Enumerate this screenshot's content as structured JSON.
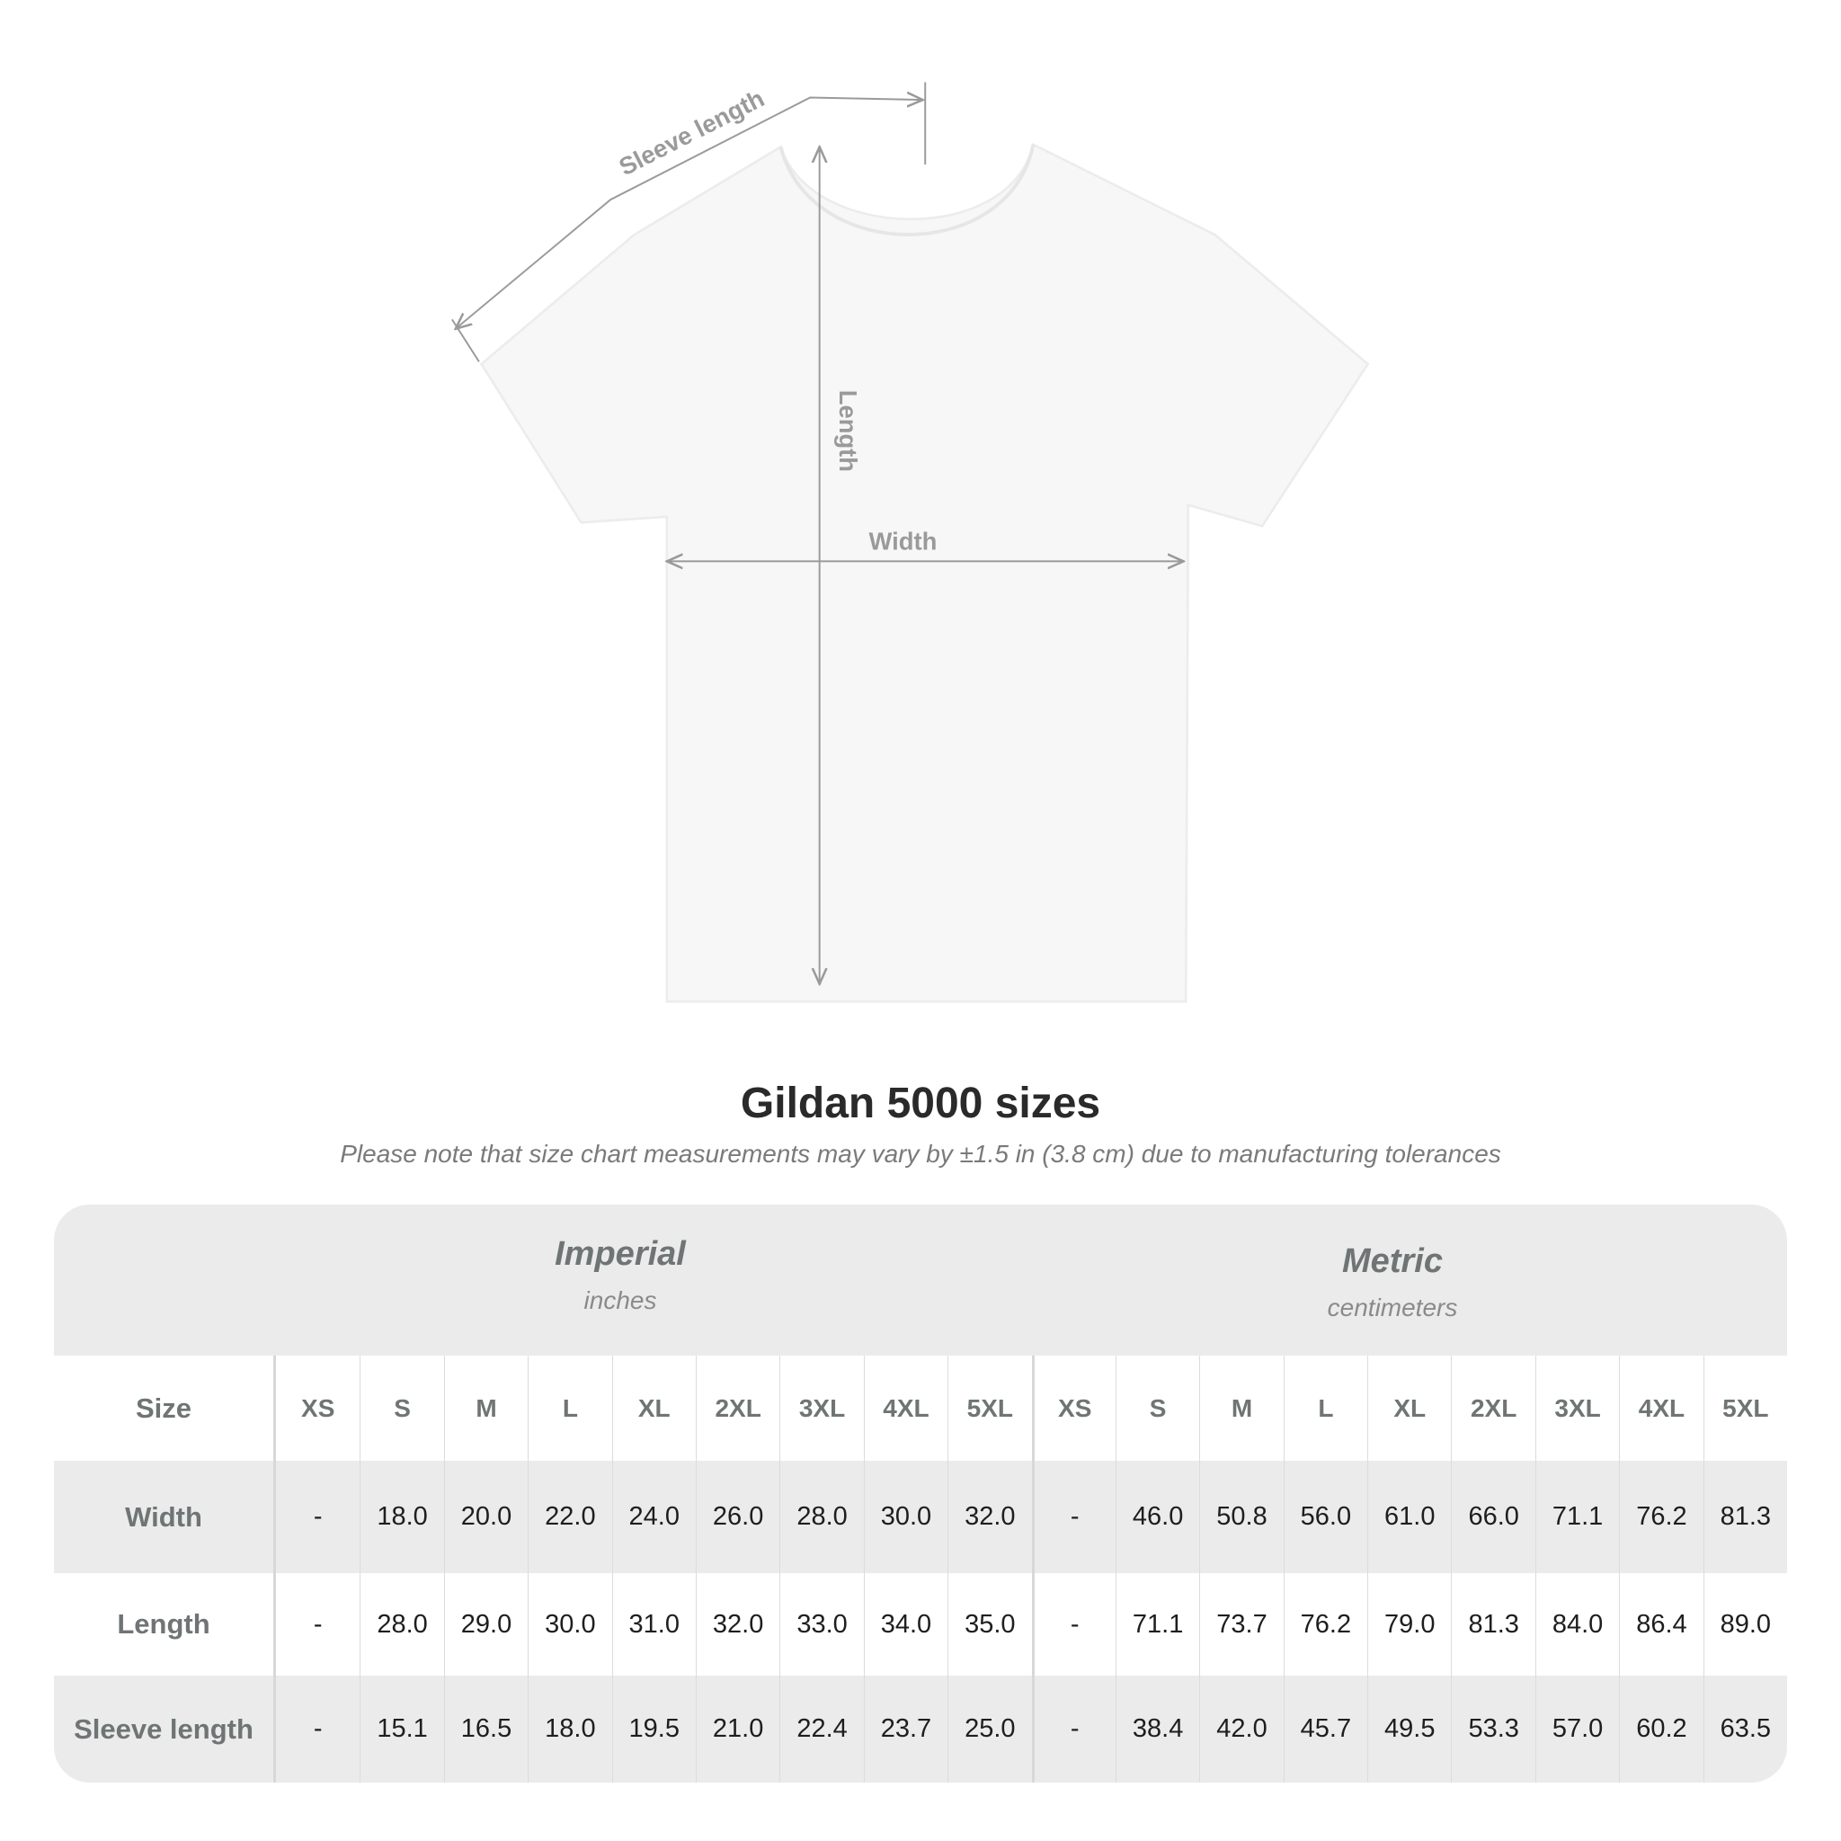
{
  "diagram": {
    "labels": {
      "sleeve": "Sleeve length",
      "length": "Length",
      "width": "Width"
    },
    "shirt_color": "#f7f7f7",
    "arrow_color": "#9a9a9a"
  },
  "title": "Gildan 5000 sizes",
  "subtitle": "Please note that size chart measurements may vary by ±1.5 in (3.8 cm) due to manufacturing tolerances",
  "table": {
    "imperial": {
      "name": "Imperial",
      "unit": "inches"
    },
    "metric": {
      "name": "Metric",
      "unit": "centimeters"
    },
    "size_label": "Size",
    "sizes": [
      "XS",
      "S",
      "M",
      "L",
      "XL",
      "2XL",
      "3XL",
      "4XL",
      "5XL"
    ],
    "rows": [
      {
        "label": "Width",
        "imperial": [
          "-",
          "18.0",
          "20.0",
          "22.0",
          "24.0",
          "26.0",
          "28.0",
          "30.0",
          "32.0"
        ],
        "metric": [
          "-",
          "46.0",
          "50.8",
          "56.0",
          "61.0",
          "66.0",
          "71.1",
          "76.2",
          "81.3"
        ]
      },
      {
        "label": "Length",
        "imperial": [
          "-",
          "28.0",
          "29.0",
          "30.0",
          "31.0",
          "32.0",
          "33.0",
          "34.0",
          "35.0"
        ],
        "metric": [
          "-",
          "71.1",
          "73.7",
          "76.2",
          "79.0",
          "81.3",
          "84.0",
          "86.4",
          "89.0"
        ]
      },
      {
        "label": "Sleeve length",
        "imperial": [
          "-",
          "15.1",
          "16.5",
          "18.0",
          "19.5",
          "21.0",
          "22.4",
          "23.7",
          "25.0"
        ],
        "metric": [
          "-",
          "38.4",
          "42.0",
          "45.7",
          "49.5",
          "53.3",
          "57.0",
          "60.2",
          "63.5"
        ]
      }
    ]
  }
}
